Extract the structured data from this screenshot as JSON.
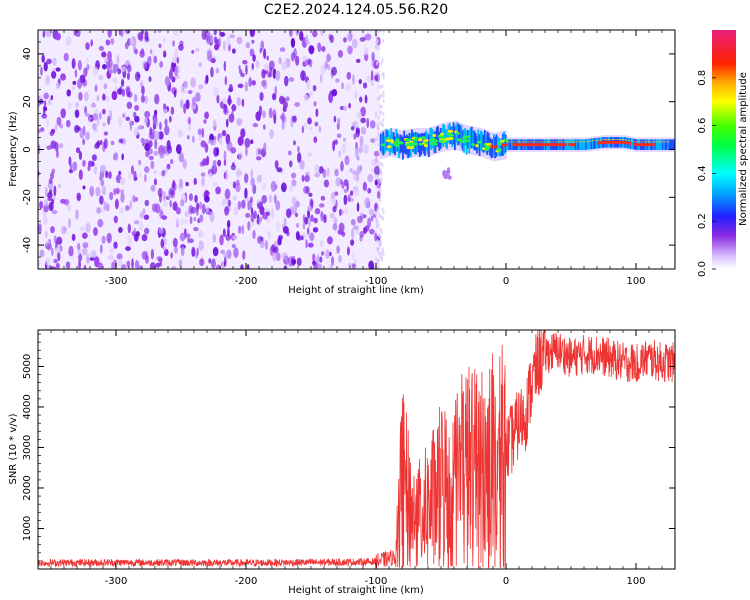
{
  "title": "C2E2.2024.124.05.56.R20",
  "chart_data": [
    {
      "type": "heatmap",
      "name": "spectrogram",
      "xlabel": "Height of straight line (km)",
      "ylabel": "Frequency (Hz)",
      "xlim": [
        -360,
        130
      ],
      "ylim": [
        -50,
        50
      ],
      "xticks": [
        -300,
        -200,
        -100,
        0,
        100
      ],
      "yticks": [
        -40,
        -20,
        0,
        20,
        40
      ],
      "xtick_labels": [
        "-300",
        "-200",
        "-100",
        "0",
        "100"
      ],
      "ytick_labels": [
        "-40",
        "-20",
        "0",
        "20",
        "40"
      ],
      "noise_region_x": [
        -360,
        -97
      ],
      "signal_ridge": {
        "x": [
          -97,
          -90,
          -80,
          -70,
          -60,
          -50,
          -40,
          -30,
          -20,
          -10,
          0,
          20,
          40,
          60,
          75,
          90,
          100,
          115,
          130
        ],
        "freq": [
          2,
          3,
          2,
          3,
          3,
          5,
          6,
          4,
          3,
          1,
          2,
          2,
          2,
          2,
          3,
          3,
          2,
          2,
          2
        ]
      },
      "colorbar": {
        "label": "Normalized spectral amplitude",
        "range": [
          0,
          1
        ],
        "ticks": [
          0.0,
          0.2,
          0.4,
          0.6,
          0.8
        ],
        "tick_labels": [
          "0.0",
          "0.2",
          "0.4",
          "0.6",
          "0.8"
        ]
      }
    },
    {
      "type": "line",
      "name": "snr",
      "xlabel": "Height of straight line (km)",
      "ylabel": "SNR (10 * v/v)",
      "xlim": [
        -360,
        130
      ],
      "ylim": [
        0,
        5900
      ],
      "xticks": [
        -300,
        -200,
        -100,
        0,
        100
      ],
      "yticks": [
        1000,
        2000,
        3000,
        4000,
        5000
      ],
      "xtick_labels": [
        "-300",
        "-200",
        "-100",
        "0",
        "100"
      ],
      "ytick_labels": [
        "1000",
        "2000",
        "3000",
        "4000",
        "5000"
      ],
      "series": [
        {
          "name": "SNR",
          "color": "#ee3333",
          "x": [
            -360,
            -300,
            -200,
            -120,
            -100,
            -85,
            -80,
            -70,
            -60,
            -50,
            -40,
            -30,
            -20,
            -10,
            -5,
            0,
            10,
            15,
            20,
            25,
            30,
            40,
            50,
            60,
            70,
            80,
            90,
            100,
            110,
            120,
            130
          ],
          "y": [
            150,
            160,
            150,
            170,
            180,
            300,
            2200,
            1200,
            1500,
            2000,
            2200,
            2500,
            2300,
            2600,
            2500,
            2900,
            3600,
            3800,
            4600,
            5100,
            5300,
            5400,
            5200,
            5300,
            5300,
            5200,
            5100,
            5100,
            5200,
            5100,
            5100
          ]
        }
      ]
    }
  ]
}
